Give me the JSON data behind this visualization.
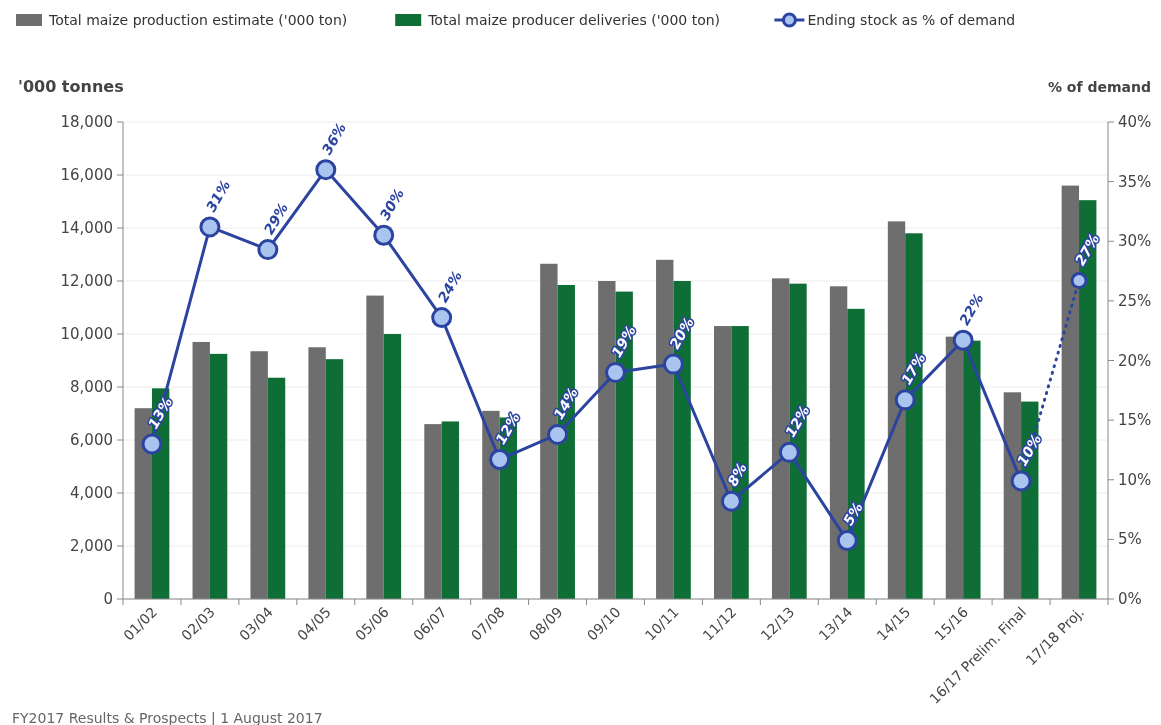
{
  "chart_data": {
    "type": "bar",
    "ylabel": "'000 tonnes",
    "y2label": "% of demand",
    "categories": [
      "01/02",
      "02/03",
      "03/04",
      "04/05",
      "05/06",
      "06/07",
      "07/08",
      "08/09",
      "09/10",
      "10/11",
      "11/12",
      "12/13",
      "13/14",
      "14/15",
      "15/16",
      "16/17 Prelim. Final",
      "17/18 Proj."
    ],
    "series": [
      {
        "name": "Total maize production estimate ('000 ton)",
        "color": "#6e6e6e",
        "values": [
          7200,
          9700,
          9350,
          9500,
          11450,
          6600,
          7100,
          12650,
          12000,
          12800,
          10300,
          12100,
          11800,
          14250,
          9900,
          7800,
          15600
        ]
      },
      {
        "name": "Total maize producer deliveries ('000 ton)",
        "color": "#0f6e35",
        "values": [
          7950,
          9250,
          8350,
          9050,
          10000,
          6700,
          6850,
          11850,
          11600,
          12000,
          10300,
          11900,
          10950,
          13800,
          9750,
          7450,
          15050
        ]
      },
      {
        "name": "Ending stock as % of demand",
        "type": "line",
        "axis": "y2",
        "color": "#2b44a0",
        "marker": "circle",
        "line_style": "solid",
        "values": [
          13.0,
          31.2,
          29.3,
          36.0,
          30.5,
          23.6,
          11.7,
          13.8,
          19.0,
          19.7,
          8.2,
          12.3,
          4.9,
          16.7,
          21.7,
          9.9,
          null
        ],
        "value_labels": [
          "13%",
          "31%",
          "29%",
          "36%",
          "30%",
          "24%",
          "12%",
          "14%",
          "19%",
          "20%",
          "8%",
          "12%",
          "5%",
          "17%",
          "22%",
          "10%",
          null
        ]
      },
      {
        "type": "line",
        "axis": "y2",
        "color": "#2b44a0",
        "marker": "circle",
        "line_style": "dotted",
        "values": [
          null,
          null,
          null,
          null,
          null,
          null,
          null,
          null,
          null,
          null,
          null,
          null,
          null,
          null,
          null,
          9.9,
          26.7
        ],
        "value_labels": [
          null,
          null,
          null,
          null,
          null,
          null,
          null,
          null,
          null,
          null,
          null,
          null,
          null,
          null,
          null,
          null,
          "27%"
        ]
      }
    ],
    "ylim": [
      0,
      18000
    ],
    "yticks": [
      {
        "value": 0,
        "label": "0"
      },
      {
        "value": 2000,
        "label": "2,000"
      },
      {
        "value": 4000,
        "label": "4,000"
      },
      {
        "value": 6000,
        "label": "6,000"
      },
      {
        "value": 8000,
        "label": "8,000"
      },
      {
        "value": 10000,
        "label": "10,000"
      },
      {
        "value": 12000,
        "label": "12,000"
      },
      {
        "value": 14000,
        "label": "14,000"
      },
      {
        "value": 16000,
        "label": "16,000"
      },
      {
        "value": 18000,
        "label": "18,000"
      }
    ],
    "y2lim": [
      0,
      40
    ],
    "y2ticks": [
      {
        "value": 0,
        "label": "0%"
      },
      {
        "value": 5,
        "label": "5%"
      },
      {
        "value": 10,
        "label": "10%"
      },
      {
        "value": 15,
        "label": "15%"
      },
      {
        "value": 20,
        "label": "20%"
      },
      {
        "value": 25,
        "label": "25%"
      },
      {
        "value": 30,
        "label": "30%"
      },
      {
        "value": 35,
        "label": "35%"
      },
      {
        "value": 40,
        "label": "40%"
      }
    ],
    "grid": "y",
    "legend": "top",
    "annotations": [
      "FY2017 Results & Prospects | 1 August 2017"
    ]
  }
}
